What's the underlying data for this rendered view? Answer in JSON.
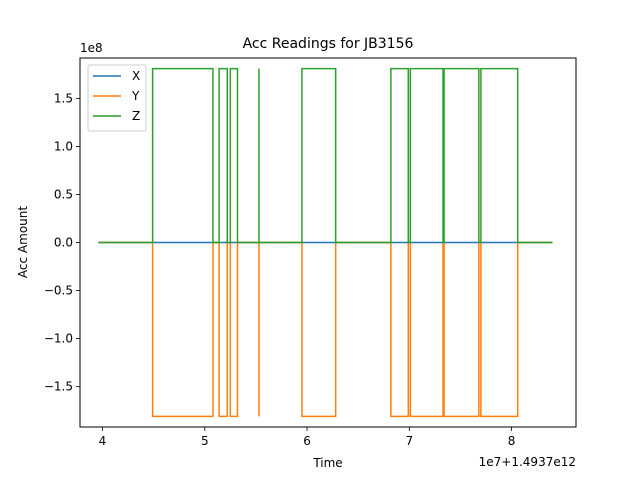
{
  "chart_data": {
    "type": "line",
    "title": "Acc Readings for JB3156",
    "xlabel": "Time",
    "ylabel": "Acc Amount",
    "x_offset_label": "1e7+1.4937e12",
    "y_scale_label": "1e8",
    "x_ticks": [
      4,
      5,
      6,
      7,
      8
    ],
    "x_tick_labels": [
      "4",
      "5",
      "6",
      "7",
      "8"
    ],
    "y_ticks": [
      -1.5,
      -1.0,
      -0.5,
      0.0,
      0.5,
      1.0,
      1.5
    ],
    "y_tick_labels": [
      "−1.5",
      "−1.0",
      "−0.5",
      "0.0",
      "0.5",
      "1.0",
      "1.5"
    ],
    "xlim": [
      3.78,
      8.63
    ],
    "ylim": [
      -1.92,
      1.92
    ],
    "grid": false,
    "legend_position": "top-left",
    "series": [
      {
        "name": "X",
        "color": "#1f77b4",
        "x": [
          3.96,
          8.4
        ],
        "y": [
          0,
          0
        ]
      },
      {
        "name": "Y",
        "color": "#ff7f0e",
        "x": [
          3.96,
          4.49,
          4.49,
          5.08,
          5.08,
          5.14,
          5.14,
          5.22,
          5.22,
          5.25,
          5.25,
          5.32,
          5.32,
          5.53,
          5.53,
          5.53,
          5.53,
          5.95,
          5.95,
          6.28,
          6.28,
          6.82,
          6.82,
          6.99,
          6.99,
          7.01,
          7.01,
          7.33,
          7.33,
          7.34,
          7.34,
          7.68,
          7.68,
          7.7,
          7.7,
          8.06,
          8.06,
          8.4
        ],
        "y": [
          0,
          0,
          -1.81,
          -1.81,
          0,
          0,
          -1.81,
          -1.81,
          0,
          0,
          -1.81,
          -1.81,
          0,
          0,
          -1.81,
          -1.81,
          0,
          0,
          -1.81,
          -1.81,
          0,
          0,
          -1.81,
          -1.81,
          0,
          0,
          -1.81,
          -1.81,
          0,
          0,
          -1.81,
          -1.81,
          0,
          0,
          -1.81,
          -1.81,
          0,
          0
        ]
      },
      {
        "name": "Z",
        "color": "#2ca02c",
        "x": [
          3.96,
          4.49,
          4.49,
          5.08,
          5.08,
          5.14,
          5.14,
          5.22,
          5.22,
          5.25,
          5.25,
          5.32,
          5.32,
          5.53,
          5.53,
          5.53,
          5.53,
          5.95,
          5.95,
          6.28,
          6.28,
          6.82,
          6.82,
          6.99,
          6.99,
          7.01,
          7.01,
          7.33,
          7.33,
          7.34,
          7.34,
          7.68,
          7.68,
          7.7,
          7.7,
          8.06,
          8.06,
          8.4
        ],
        "y": [
          0,
          0,
          1.81,
          1.81,
          0,
          0,
          1.81,
          1.81,
          0,
          0,
          1.81,
          1.81,
          0,
          0,
          1.81,
          1.81,
          0,
          0,
          1.81,
          1.81,
          0,
          0,
          1.81,
          1.81,
          0,
          0,
          1.81,
          1.81,
          0,
          0,
          1.81,
          1.81,
          0,
          0,
          1.81,
          1.81,
          0,
          0
        ]
      }
    ]
  }
}
